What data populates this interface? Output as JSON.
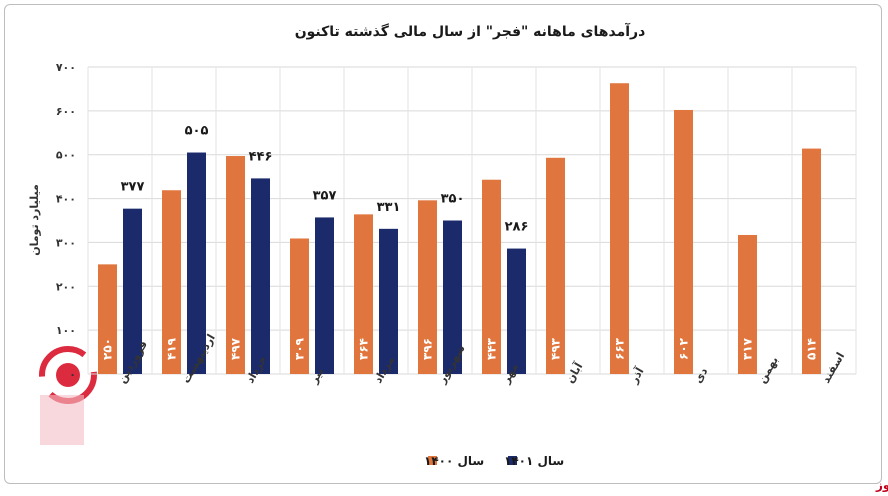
{
  "chart_data": {
    "type": "bar",
    "title": "درآمدهای ماهانه \"فجر\" از سال مالی گذشته تاکنون",
    "ylabel": "میلیارد تومان",
    "xlabel": "",
    "ylim": [
      0,
      700
    ],
    "yticks": [
      "۰",
      "۱۰۰",
      "۲۰۰",
      "۳۰۰",
      "۴۰۰",
      "۵۰۰",
      "۶۰۰",
      "۷۰۰"
    ],
    "grid": true,
    "legend_position": "bottom",
    "categories": [
      "فروردین",
      "اردیبهشت",
      "خرداد",
      "تیر",
      "مرداد",
      "شهریور",
      "مهر",
      "آبان",
      "آذر",
      "دی",
      "بهمن",
      "اسفند"
    ],
    "series": [
      {
        "name": "سال ۱۴۰۰",
        "color": "#e0763d",
        "values": [
          250,
          419,
          497,
          309,
          364,
          396,
          443,
          493,
          663,
          602,
          317,
          514
        ],
        "labels": [
          "۲۵۰",
          "۴۱۹",
          "۴۹۷",
          "۳۰۹",
          "۳۶۴",
          "۳۹۶",
          "۴۴۳",
          "۴۹۳",
          "۶۶۳",
          "۶۰۲",
          "۳۱۷",
          "۵۱۴"
        ]
      },
      {
        "name": "سال ۱۴۰۱",
        "color": "#1b2a6b",
        "values": [
          377,
          505,
          446,
          357,
          331,
          350,
          286,
          null,
          null,
          null,
          null,
          null
        ],
        "labels": [
          "۳۷۷",
          "۵۰۵",
          "۴۴۶",
          "۳۵۷",
          "۳۳۱",
          "۳۵۰",
          "۲۸۶",
          "",
          "",
          "",
          "",
          ""
        ]
      }
    ]
  },
  "source": "بورس نیوز",
  "watermark": "بورس نیوز"
}
